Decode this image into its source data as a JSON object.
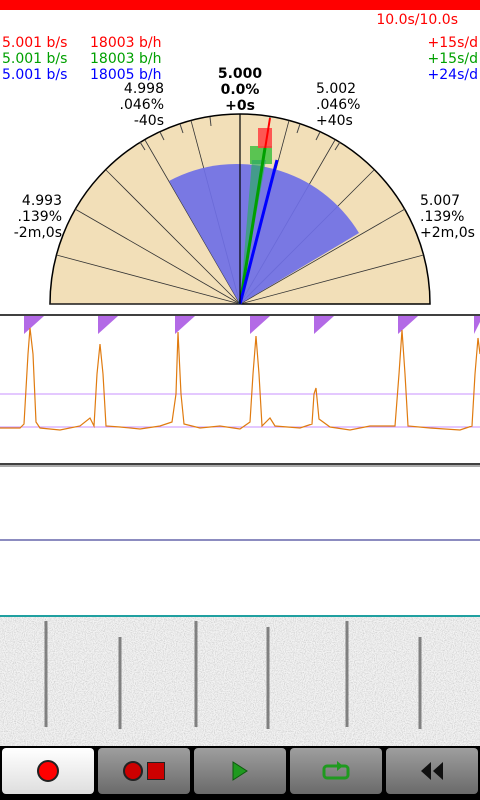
{
  "header": {
    "time_progress": "10.0s/10.0s"
  },
  "rates": [
    {
      "color": "#ff0000",
      "bps": "5.001 b/s",
      "bph": "18003 b/h",
      "sd": "+15s/d"
    },
    {
      "color": "#00a000",
      "bps": "5.001 b/s",
      "bph": "18003 b/h",
      "sd": "+15s/d"
    },
    {
      "color": "#0000ff",
      "bps": "5.001 b/s",
      "bph": "18005 b/h",
      "sd": "+24s/d"
    }
  ],
  "dial": {
    "top": {
      "rate": "5.000",
      "pct": "0.0%",
      "offset": "+0s"
    },
    "upper_left": {
      "rate": "4.998",
      "pct": ".046%",
      "offset": "-40s"
    },
    "upper_right": {
      "rate": "5.002",
      "pct": ".046%",
      "offset": "+40s"
    },
    "left": {
      "rate": "4.993",
      "pct": ".139%",
      "offset": "-2m,0s"
    },
    "right": {
      "rate": "5.007",
      "pct": ".139%",
      "offset": "+2m,0s"
    },
    "face_color": "#f2dfb8",
    "spread_color": "#6f6fe6"
  },
  "colors": {
    "trace": "#e07b10",
    "marker": "#b36ae6",
    "guide": "#c990ff"
  },
  "toolbar": {
    "record": "record-icon",
    "record_stop": "record-stop-icon",
    "play": "play-icon",
    "loop": "loop-icon",
    "rewind": "rewind-icon"
  }
}
